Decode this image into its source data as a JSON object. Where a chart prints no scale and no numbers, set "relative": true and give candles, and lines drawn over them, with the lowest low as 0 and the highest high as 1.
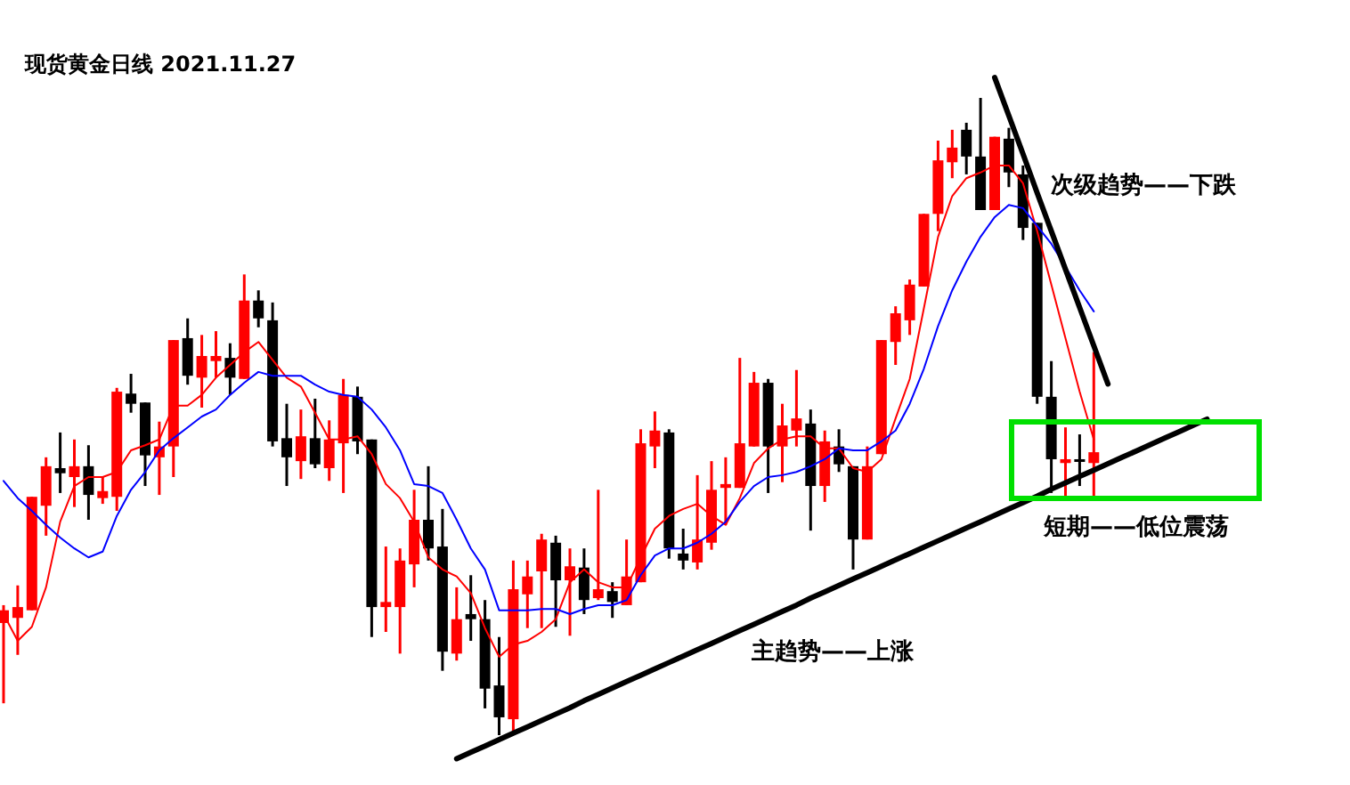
{
  "chart_data": {
    "type": "candlestick",
    "title": "现货黄金日线 2021.11.27",
    "relative": true,
    "categories": [
      null,
      null,
      null,
      null,
      null,
      null,
      null,
      null,
      null,
      null,
      null,
      null,
      null,
      null,
      null,
      null,
      null,
      null,
      null,
      null,
      null,
      null,
      null,
      null,
      null,
      null,
      null,
      null,
      null,
      null,
      null,
      null,
      null,
      null,
      null,
      null,
      null,
      null,
      null,
      null,
      null,
      null,
      null,
      null,
      null,
      null,
      null,
      null,
      null,
      null,
      null,
      null,
      null,
      null,
      null,
      null,
      null,
      null,
      null,
      null,
      null,
      null,
      null,
      null,
      null,
      null,
      null,
      null,
      null,
      null,
      null,
      null,
      null,
      null,
      null,
      null,
      null,
      null,
      null,
      null,
      null,
      null,
      null,
      null,
      null,
      null
    ],
    "ohlc": [
      [
        0.176,
        0.204,
        0.05,
        0.196
      ],
      [
        0.184,
        0.235,
        0.126,
        0.201
      ],
      [
        0.196,
        0.374,
        0.196,
        0.374
      ],
      [
        0.36,
        0.436,
        0.313,
        0.422
      ],
      [
        0.419,
        0.475,
        0.38,
        0.411
      ],
      [
        0.405,
        0.464,
        0.358,
        0.422
      ],
      [
        0.422,
        0.455,
        0.338,
        0.377
      ],
      [
        0.372,
        0.405,
        0.363,
        0.383
      ],
      [
        0.374,
        0.545,
        0.352,
        0.539
      ],
      [
        0.536,
        0.567,
        0.506,
        0.52
      ],
      [
        0.522,
        0.522,
        0.391,
        0.439
      ],
      [
        0.436,
        0.492,
        0.377,
        0.453
      ],
      [
        0.453,
        0.62,
        0.405,
        0.62
      ],
      [
        0.623,
        0.654,
        0.55,
        0.564
      ],
      [
        0.561,
        0.628,
        0.514,
        0.595
      ],
      [
        0.587,
        0.634,
        0.561,
        0.595
      ],
      [
        0.592,
        0.615,
        0.534,
        0.561
      ],
      [
        0.559,
        0.723,
        0.559,
        0.682
      ],
      [
        0.682,
        0.698,
        0.64,
        0.654
      ],
      [
        0.651,
        0.679,
        0.453,
        0.461
      ],
      [
        0.466,
        0.52,
        0.391,
        0.436
      ],
      [
        0.43,
        0.511,
        0.402,
        0.469
      ],
      [
        0.466,
        0.528,
        0.419,
        0.425
      ],
      [
        0.419,
        0.494,
        0.399,
        0.464
      ],
      [
        0.458,
        0.559,
        0.38,
        0.534
      ],
      [
        0.531,
        0.547,
        0.441,
        0.461
      ],
      [
        0.464,
        0.464,
        0.154,
        0.201
      ],
      [
        0.201,
        0.296,
        0.162,
        0.209
      ],
      [
        0.201,
        0.293,
        0.128,
        0.274
      ],
      [
        0.268,
        0.385,
        0.232,
        0.338
      ],
      [
        0.338,
        0.422,
        0.274,
        0.293
      ],
      [
        0.296,
        0.355,
        0.101,
        0.131
      ],
      [
        0.128,
        0.232,
        0.117,
        0.182
      ],
      [
        0.19,
        0.251,
        0.148,
        0.182
      ],
      [
        0.182,
        0.212,
        0.042,
        0.073
      ],
      [
        0.078,
        0.154,
        0,
        0.028
      ],
      [
        0.025,
        0.274,
        0,
        0.229
      ],
      [
        0.221,
        0.274,
        0.168,
        0.249
      ],
      [
        0.257,
        0.316,
        0.168,
        0.307
      ],
      [
        0.302,
        0.313,
        0.17,
        0.243
      ],
      [
        0.243,
        0.293,
        0.156,
        0.265
      ],
      [
        0.263,
        0.293,
        0.19,
        0.212
      ],
      [
        0.215,
        0.385,
        0.212,
        0.229
      ],
      [
        0.226,
        0.24,
        0.184,
        0.209
      ],
      [
        0.204,
        0.307,
        0.204,
        0.249
      ],
      [
        0.24,
        0.48,
        0.24,
        0.458
      ],
      [
        0.453,
        0.508,
        0.419,
        0.478
      ],
      [
        0.475,
        0.48,
        0.277,
        0.293
      ],
      [
        0.285,
        0.324,
        0.26,
        0.274
      ],
      [
        0.271,
        0.408,
        0.26,
        0.307
      ],
      [
        0.302,
        0.43,
        0.291,
        0.385
      ],
      [
        0.388,
        0.436,
        0.33,
        0.394
      ],
      [
        0.388,
        0.592,
        0.388,
        0.458
      ],
      [
        0.453,
        0.57,
        0.453,
        0.553
      ],
      [
        0.553,
        0.559,
        0.38,
        0.453
      ],
      [
        0.453,
        0.52,
        0.397,
        0.486
      ],
      [
        0.478,
        0.573,
        0.453,
        0.497
      ],
      [
        0.489,
        0.511,
        0.321,
        0.391
      ],
      [
        0.391,
        0.478,
        0.366,
        0.461
      ],
      [
        0.453,
        0.48,
        0.413,
        0.425
      ],
      [
        0.422,
        0.422,
        0.26,
        0.307
      ],
      [
        0.307,
        0.453,
        0.307,
        0.422
      ],
      [
        0.441,
        0.62,
        0.441,
        0.62
      ],
      [
        0.617,
        0.673,
        0.581,
        0.662
      ],
      [
        0.651,
        0.715,
        0.628,
        0.707
      ],
      [
        0.704,
        0.818,
        0.704,
        0.818
      ],
      [
        0.818,
        0.933,
        0.791,
        0.902
      ],
      [
        0.899,
        0.95,
        0.874,
        0.922
      ],
      [
        0.95,
        0.961,
        0.88,
        0.908
      ],
      [
        0.908,
        1,
        0.824,
        0.824
      ],
      [
        0.824,
        0.939,
        0.824,
        0.939
      ],
      [
        0.936,
        0.953,
        0.86,
        0.883
      ],
      [
        0.88,
        0.894,
        0.777,
        0.796
      ],
      [
        0.804,
        0.804,
        0.52,
        0.531
      ],
      [
        0.531,
        0.587,
        0.38,
        0.433
      ],
      [
        0.427,
        0.483,
        0.372,
        0.433
      ],
      [
        0.433,
        0.472,
        0.391,
        0.43
      ],
      [
        0.427,
        0.601,
        0.372,
        0.444
      ],
      null,
      null,
      null,
      null,
      null,
      null,
      null,
      null
    ],
    "colors": [
      "#ff0000",
      "#ff0000",
      "#ff0000",
      "#ff0000",
      "#000000",
      "#ff0000",
      "#000000",
      "#ff0000",
      "#ff0000",
      "#000000",
      "#000000",
      "#ff0000",
      "#ff0000",
      "#000000",
      "#ff0000",
      "#ff0000",
      "#000000",
      "#ff0000",
      "#000000",
      "#000000",
      "#000000",
      "#ff0000",
      "#000000",
      "#ff0000",
      "#ff0000",
      "#000000",
      "#000000",
      "#ff0000",
      "#ff0000",
      "#ff0000",
      "#000000",
      "#000000",
      "#ff0000",
      "#000000",
      "#000000",
      "#000000",
      "#ff0000",
      "#ff0000",
      "#ff0000",
      "#000000",
      "#ff0000",
      "#000000",
      "#ff0000",
      "#000000",
      "#ff0000",
      "#ff0000",
      "#ff0000",
      "#000000",
      "#000000",
      "#ff0000",
      "#ff0000",
      "#ff0000",
      "#ff0000",
      "#ff0000",
      "#000000",
      "#ff0000",
      "#ff0000",
      "#000000",
      "#ff0000",
      "#000000",
      "#000000",
      "#ff0000",
      "#ff0000",
      "#ff0000",
      "#ff0000",
      "#ff0000",
      "#ff0000",
      "#ff0000",
      "#000000",
      "#000000",
      "#ff0000",
      "#000000",
      "#000000",
      "#000000",
      "#000000",
      "#ff0000",
      "#000000",
      "#ff0000",
      null,
      null,
      null,
      null,
      null,
      null,
      null,
      null
    ],
    "series": [
      {
        "type": "line",
        "color": "#ff0000",
        "values": [
          0.19,
          0.148,
          0.17,
          0.232,
          0.335,
          0.391,
          0.405,
          0.405,
          0.413,
          0.447,
          0.455,
          0.464,
          0.517,
          0.517,
          0.534,
          0.561,
          0.581,
          0.601,
          0.617,
          0.589,
          0.561,
          0.547,
          0.506,
          0.464,
          0.464,
          0.469,
          0.441,
          0.394,
          0.372,
          0.335,
          0.279,
          0.26,
          0.249,
          0.223,
          0.168,
          0.123,
          0.142,
          0.148,
          0.162,
          0.182,
          0.24,
          0.26,
          0.24,
          0.232,
          0.232,
          0.279,
          0.324,
          0.344,
          0.355,
          0.363,
          0.344,
          0.33,
          0.372,
          0.427,
          0.45,
          0.464,
          0.469,
          0.469,
          0.45,
          0.45,
          0.419,
          0.413,
          0.433,
          0.497,
          0.559,
          0.67,
          0.782,
          0.846,
          0.874,
          0.883,
          0.894,
          0.894,
          0.866,
          0.791,
          0.707,
          0.623,
          0.539,
          0.464,
          null,
          null,
          null,
          null,
          null,
          null,
          null,
          null
        ]
      },
      {
        "type": "line",
        "color": "#0000ff",
        "values": [
          0.399,
          0.372,
          0.352,
          0.33,
          0.31,
          0.293,
          0.279,
          0.288,
          0.344,
          0.385,
          0.413,
          0.447,
          0.466,
          0.483,
          0.5,
          0.511,
          0.534,
          0.553,
          0.57,
          0.564,
          0.564,
          0.564,
          0.55,
          0.539,
          0.534,
          0.531,
          0.511,
          0.483,
          0.447,
          0.394,
          0.391,
          0.38,
          0.338,
          0.293,
          0.26,
          0.196,
          0.196,
          0.196,
          0.198,
          0.198,
          0.19,
          0.198,
          0.204,
          0.204,
          0.212,
          0.251,
          0.282,
          0.293,
          0.293,
          0.302,
          0.316,
          0.335,
          0.366,
          0.391,
          0.405,
          0.408,
          0.413,
          0.422,
          0.433,
          0.45,
          0.447,
          0.447,
          0.461,
          0.478,
          0.52,
          0.575,
          0.642,
          0.698,
          0.743,
          0.782,
          0.813,
          0.832,
          0.827,
          0.799,
          0.771,
          0.735,
          0.698,
          0.665,
          null,
          null,
          null,
          null,
          null,
          null,
          null,
          null
        ]
      },
      {
        "type": "line",
        "color": "#000000",
        "values": [
          null,
          null,
          null,
          null,
          null,
          null,
          null,
          null,
          null,
          null,
          null,
          null,
          null,
          null,
          null,
          null,
          null,
          null,
          null,
          null,
          null,
          null,
          null,
          null,
          null,
          null,
          null,
          null,
          null,
          null,
          null,
          null,
          -0.037,
          -0.027,
          -0.017,
          -0.007,
          0.003,
          0.013,
          0.023,
          0.033,
          0.043,
          0.054,
          0.064,
          0.074,
          0.084,
          0.094,
          0.104,
          0.114,
          0.124,
          0.134,
          0.144,
          0.154,
          0.164,
          0.174,
          0.184,
          0.194,
          0.204,
          0.215,
          0.225,
          0.235,
          0.245,
          0.255,
          0.265,
          0.275,
          0.285,
          0.295,
          0.305,
          0.315,
          0.325,
          0.335,
          0.345,
          0.355,
          0.365,
          0.375,
          0.386,
          0.396,
          0.406,
          0.416,
          0.426,
          0.436,
          0.446,
          0.456,
          0.466,
          0.476,
          0.486,
          0.496
        ]
      },
      {
        "type": "line",
        "color": "#000000",
        "values": [
          null,
          null,
          null,
          null,
          null,
          null,
          null,
          null,
          null,
          null,
          null,
          null,
          null,
          null,
          null,
          null,
          null,
          null,
          null,
          null,
          null,
          null,
          null,
          null,
          null,
          null,
          null,
          null,
          null,
          null,
          null,
          null,
          null,
          null,
          null,
          null,
          null,
          null,
          null,
          null,
          null,
          null,
          null,
          null,
          null,
          null,
          null,
          null,
          null,
          null,
          null,
          null,
          null,
          null,
          null,
          null,
          null,
          null,
          null,
          null,
          null,
          null,
          null,
          null,
          null,
          null,
          null,
          null,
          null,
          null,
          1.032,
          0.972,
          0.912,
          0.851,
          0.791,
          0.731,
          0.671,
          0.611,
          0.551,
          null,
          null,
          null,
          null,
          null,
          null,
          null
        ]
      }
    ],
    "annotations": [
      "次级趋势——下跌",
      "主趋势——上涨",
      "短期——低位震荡"
    ]
  }
}
